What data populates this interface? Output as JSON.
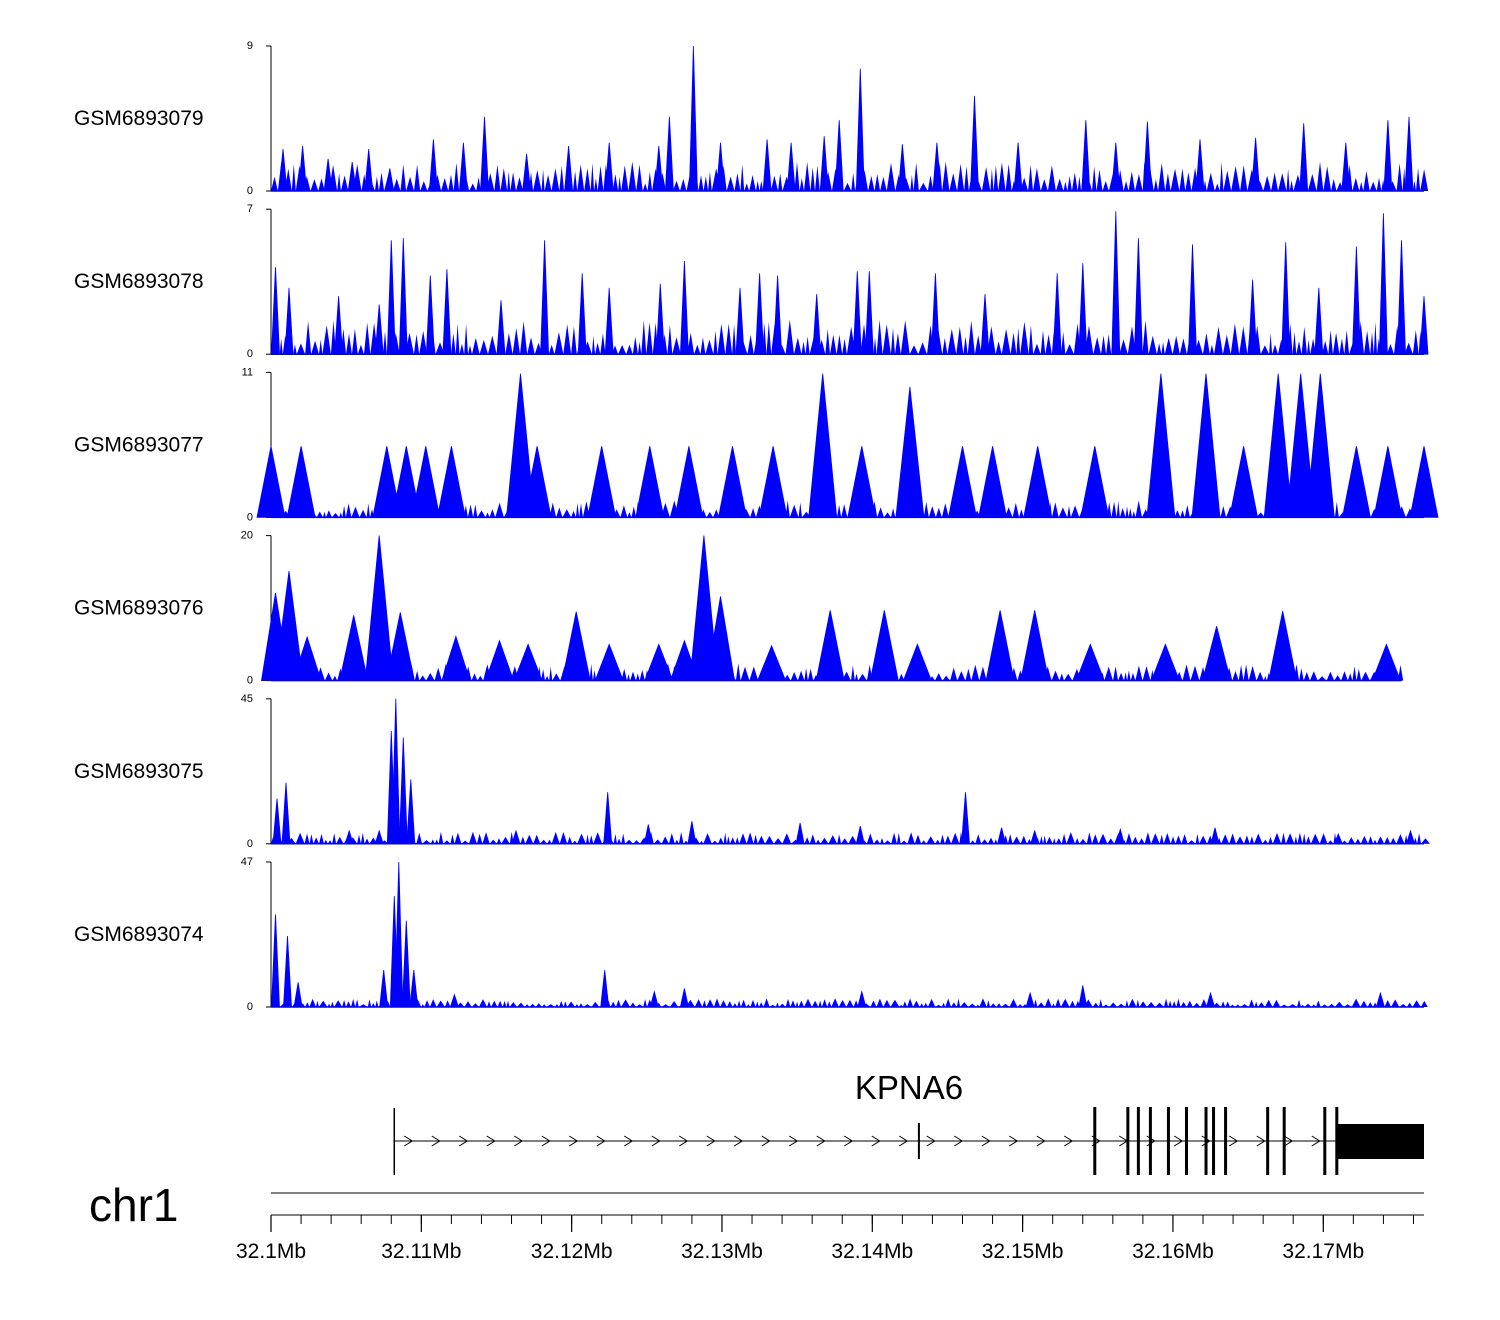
{
  "chart_data": {
    "type": "area",
    "title": "",
    "chromosome": "chr1",
    "fill_color": "#0000ff",
    "x_range": [
      32.1,
      32.1767
    ],
    "x_unit": "Mb",
    "x_ticks": [
      32.1,
      32.11,
      32.12,
      32.13,
      32.14,
      32.15,
      32.16,
      32.17
    ],
    "x_tick_labels": [
      "32.1Mb",
      "32.11Mb",
      "32.12Mb",
      "32.13Mb",
      "32.14Mb",
      "32.15Mb",
      "32.16Mb",
      "32.17Mb"
    ],
    "series": [
      {
        "name": "GSM6893079",
        "ylim": [
          0,
          9
        ],
        "ylim_labels": [
          "0",
          "9"
        ],
        "peaks": [
          [
            32.1008,
            2.6
          ],
          [
            32.1021,
            2.8
          ],
          [
            32.1038,
            2.0
          ],
          [
            32.1054,
            1.8
          ],
          [
            32.1065,
            2.6
          ],
          [
            32.1079,
            1.4
          ],
          [
            32.1108,
            3.2
          ],
          [
            32.1128,
            3.0
          ],
          [
            32.1142,
            4.6
          ],
          [
            32.117,
            2.3
          ],
          [
            32.1198,
            2.8
          ],
          [
            32.1225,
            3.0
          ],
          [
            32.1258,
            2.8
          ],
          [
            32.1265,
            4.6
          ],
          [
            32.1281,
            9.0
          ],
          [
            32.1299,
            3.0
          ],
          [
            32.133,
            3.2
          ],
          [
            32.1346,
            3.0
          ],
          [
            32.1368,
            3.4
          ],
          [
            32.1378,
            4.4
          ],
          [
            32.1392,
            7.6
          ],
          [
            32.142,
            2.9
          ],
          [
            32.1443,
            3.0
          ],
          [
            32.1468,
            5.9
          ],
          [
            32.1497,
            3.0
          ],
          [
            32.1542,
            4.4
          ],
          [
            32.1562,
            3.0
          ],
          [
            32.1583,
            4.3
          ],
          [
            32.1618,
            3.2
          ],
          [
            32.1655,
            3.3
          ],
          [
            32.1687,
            4.2
          ],
          [
            32.1715,
            3.0
          ],
          [
            32.1743,
            4.4
          ],
          [
            32.1757,
            4.6
          ]
        ]
      },
      {
        "name": "GSM6893078",
        "ylim": [
          0,
          7
        ],
        "ylim_labels": [
          "0",
          "7"
        ],
        "peaks": [
          [
            32.1003,
            4.2
          ],
          [
            32.1012,
            3.2
          ],
          [
            32.1045,
            2.8
          ],
          [
            32.1072,
            2.4
          ],
          [
            32.108,
            5.5
          ],
          [
            32.1088,
            5.6
          ],
          [
            32.1106,
            3.8
          ],
          [
            32.1117,
            4.1
          ],
          [
            32.1153,
            2.6
          ],
          [
            32.1182,
            5.5
          ],
          [
            32.1207,
            3.9
          ],
          [
            32.1225,
            3.2
          ],
          [
            32.1259,
            3.4
          ],
          [
            32.1275,
            4.5
          ],
          [
            32.1312,
            3.2
          ],
          [
            32.1325,
            3.9
          ],
          [
            32.1337,
            3.8
          ],
          [
            32.1363,
            2.9
          ],
          [
            32.139,
            4.0
          ],
          [
            32.1398,
            4.0
          ],
          [
            32.1442,
            3.9
          ],
          [
            32.1475,
            2.9
          ],
          [
            32.1523,
            3.9
          ],
          [
            32.154,
            4.4
          ],
          [
            32.1562,
            6.9
          ],
          [
            32.1577,
            5.6
          ],
          [
            32.1613,
            5.3
          ],
          [
            32.1653,
            3.6
          ],
          [
            32.1675,
            5.4
          ],
          [
            32.1697,
            3.2
          ],
          [
            32.1722,
            5.2
          ],
          [
            32.174,
            6.8
          ],
          [
            32.1752,
            5.5
          ],
          [
            32.1767,
            2.8
          ]
        ]
      },
      {
        "name": "GSM6893077",
        "ylim": [
          0,
          11
        ],
        "ylim_labels": [
          "0",
          "11"
        ],
        "peaks": [
          [
            32.1,
            5.4
          ],
          [
            32.102,
            5.4
          ],
          [
            32.1077,
            5.4
          ],
          [
            32.109,
            5.4
          ],
          [
            32.1103,
            5.4
          ],
          [
            32.112,
            5.4
          ],
          [
            32.1166,
            10.9
          ],
          [
            32.1177,
            5.4
          ],
          [
            32.122,
            5.4
          ],
          [
            32.1252,
            5.4
          ],
          [
            32.1278,
            5.4
          ],
          [
            32.1307,
            5.4
          ],
          [
            32.1334,
            5.4
          ],
          [
            32.1367,
            10.9
          ],
          [
            32.1393,
            5.4
          ],
          [
            32.1425,
            9.9
          ],
          [
            32.146,
            5.4
          ],
          [
            32.148,
            5.4
          ],
          [
            32.151,
            5.4
          ],
          [
            32.1548,
            5.4
          ],
          [
            32.1592,
            10.9
          ],
          [
            32.1622,
            10.9
          ],
          [
            32.1647,
            5.4
          ],
          [
            32.167,
            10.9
          ],
          [
            32.1685,
            10.9
          ],
          [
            32.1698,
            10.9
          ],
          [
            32.1722,
            5.4
          ],
          [
            32.1743,
            5.4
          ],
          [
            32.1767,
            5.4
          ]
        ]
      },
      {
        "name": "GSM6893076",
        "ylim": [
          0,
          20
        ],
        "ylim_labels": [
          "0",
          "20"
        ],
        "peaks": [
          [
            32.1003,
            12.1
          ],
          [
            32.1012,
            15.1
          ],
          [
            32.1024,
            6.0
          ],
          [
            32.1055,
            9.0
          ],
          [
            32.1072,
            20.0
          ],
          [
            32.1086,
            9.4
          ],
          [
            32.1123,
            6.1
          ],
          [
            32.1152,
            5.5
          ],
          [
            32.1171,
            5.0
          ],
          [
            32.1203,
            9.5
          ],
          [
            32.1225,
            5.0
          ],
          [
            32.1258,
            5.0
          ],
          [
            32.1275,
            5.5
          ],
          [
            32.1288,
            20.0
          ],
          [
            32.1299,
            11.6
          ],
          [
            32.1333,
            4.8
          ],
          [
            32.1372,
            9.7
          ],
          [
            32.1408,
            9.7
          ],
          [
            32.143,
            5.0
          ],
          [
            32.1485,
            9.7
          ],
          [
            32.1508,
            9.7
          ],
          [
            32.1545,
            5.0
          ],
          [
            32.1595,
            5.0
          ],
          [
            32.1629,
            7.5
          ],
          [
            32.1673,
            9.6
          ],
          [
            32.1742,
            5.0
          ]
        ]
      },
      {
        "name": "GSM6893075",
        "ylim": [
          0,
          45
        ],
        "ylim_labels": [
          "0",
          "45"
        ],
        "peaks": [
          [
            32.1004,
            14.0
          ],
          [
            32.101,
            19.0
          ],
          [
            32.1052,
            4.0
          ],
          [
            32.1072,
            4.0
          ],
          [
            32.108,
            35.0
          ],
          [
            32.1083,
            45.0
          ],
          [
            32.1088,
            33.0
          ],
          [
            32.1093,
            20.0
          ],
          [
            32.1163,
            4.0
          ],
          [
            32.1224,
            16.0
          ],
          [
            32.1251,
            6.0
          ],
          [
            32.128,
            7.0
          ],
          [
            32.1352,
            6.5
          ],
          [
            32.1392,
            5.5
          ],
          [
            32.1462,
            16.0
          ],
          [
            32.1486,
            5.0
          ],
          [
            32.1508,
            4.0
          ],
          [
            32.1565,
            4.5
          ],
          [
            32.1628,
            5.0
          ],
          [
            32.171,
            3.0
          ],
          [
            32.1758,
            4.0
          ]
        ]
      },
      {
        "name": "GSM6893074",
        "ylim": [
          0,
          47
        ],
        "ylim_labels": [
          "0",
          "47"
        ],
        "peaks": [
          [
            32.1003,
            30.0
          ],
          [
            32.1011,
            23.0
          ],
          [
            32.1018,
            8.0
          ],
          [
            32.1075,
            12.0
          ],
          [
            32.1082,
            36.0
          ],
          [
            32.1085,
            47.0
          ],
          [
            32.109,
            28.0
          ],
          [
            32.1095,
            12.0
          ],
          [
            32.1122,
            4.0
          ],
          [
            32.1222,
            12.0
          ],
          [
            32.1255,
            5.0
          ],
          [
            32.1275,
            6.0
          ],
          [
            32.1393,
            5.0
          ],
          [
            32.1505,
            4.5
          ],
          [
            32.154,
            7.0
          ],
          [
            32.1625,
            4.5
          ],
          [
            32.1738,
            4.5
          ]
        ]
      }
    ],
    "gene_track": {
      "gene_name": "KPNA6",
      "strand": "+",
      "tx_start": 32.1082,
      "tx_end": 32.1767,
      "utr3_start": 32.1709,
      "exons": [
        32.1082,
        32.1431,
        32.1548,
        32.157,
        32.1577,
        32.1585,
        32.1597,
        32.1609,
        32.1622,
        32.1627,
        32.1635,
        32.1663,
        32.1674,
        32.1701,
        32.1709
      ]
    }
  }
}
